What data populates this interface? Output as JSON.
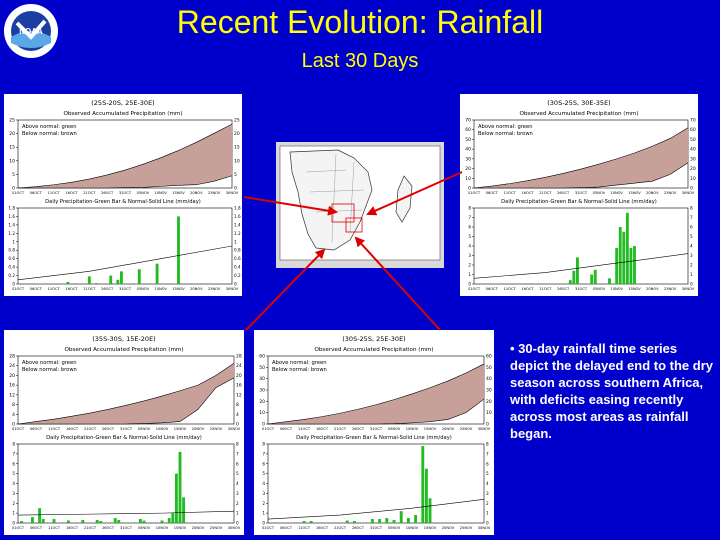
{
  "header": {
    "title": "Recent Evolution: Rainfall",
    "subtitle": "Last 30 Days",
    "logo_text": "NOAA"
  },
  "bullet": "• 30-day rainfall time series depict the delayed end to the dry season across southern Africa, with deficits easing recently across most areas as rainfall began.",
  "colors": {
    "background": "#0000cc",
    "title": "#ffff00",
    "bar": "#22bb22",
    "deficit": "#c8a09a",
    "arrow": "#dd0000"
  },
  "chart_data": [
    {
      "id": "top-left",
      "type": "area",
      "region": "(25S-20S, 25E-30E)",
      "top_title": "Observed Accumulated Precipitation (mm)",
      "legend_above": "Above normal: green",
      "legend_below": "Below normal: brown",
      "bottom_title": "Daily Precipitation-Green Bar & Normal-Solid Line (mm/day)",
      "x_ticks": [
        "01OCT",
        "06OCT",
        "11OCT",
        "16OCT",
        "21OCT",
        "26OCT",
        "31OCT",
        "05NOV",
        "10NOV",
        "15NOV",
        "20NOV",
        "25NOV",
        "30NOV"
      ],
      "top_yticks": [
        0,
        5,
        10,
        15,
        20,
        25
      ],
      "top_ylim": [
        0,
        25
      ],
      "accum_normal": [
        0,
        0.5,
        1.2,
        2.1,
        3.3,
        4.8,
        6.6,
        8.7,
        11.1,
        13.8,
        16.8,
        20.1,
        23.5
      ],
      "accum_observed": [
        0,
        0,
        0,
        0,
        0,
        0,
        0.1,
        0.2,
        0.6,
        1,
        1.2,
        2.5,
        4.5
      ],
      "bottom_yticks": [
        0,
        0.2,
        0.4,
        0.6,
        0.8,
        1,
        1.2,
        1.4,
        1.6,
        1.8
      ],
      "bottom_ylim": [
        0,
        1.8
      ],
      "daily_bars": [
        [
          0,
          0
        ],
        [
          14,
          0.05
        ],
        [
          20,
          0.18
        ],
        [
          22,
          0.02
        ],
        [
          26,
          0.2
        ],
        [
          28,
          0.1
        ],
        [
          29,
          0.3
        ],
        [
          34,
          0.35
        ],
        [
          39,
          0.48
        ],
        [
          45,
          1.6
        ]
      ],
      "daily_normal": [
        0.1,
        0.3,
        0.6,
        0.9
      ]
    },
    {
      "id": "top-right",
      "type": "area",
      "region": "(30S-25S, 30E-35E)",
      "top_title": "Observed Accumulated Precipitation (mm)",
      "legend_above": "Above normal: green",
      "legend_below": "Below normal: brown",
      "bottom_title": "Daily Precipitation-Green Bar & Normal-Solid Line (mm/day)",
      "x_ticks": [
        "01OCT",
        "06OCT",
        "11OCT",
        "16OCT",
        "21OCT",
        "26OCT",
        "31OCT",
        "05NOV",
        "10NOV",
        "15NOV",
        "20NOV",
        "25NOV",
        "30NOV"
      ],
      "top_yticks": [
        0,
        10,
        20,
        30,
        40,
        50,
        60,
        70
      ],
      "top_ylim": [
        0,
        70
      ],
      "accum_normal": [
        0,
        2,
        4.5,
        7.5,
        11,
        15,
        19.5,
        24.5,
        30,
        36,
        43,
        51,
        62
      ],
      "accum_observed": [
        0,
        0,
        0,
        0,
        0,
        0,
        0.3,
        1,
        3,
        5,
        7,
        14,
        26
      ],
      "bottom_yticks": [
        0,
        1,
        2,
        3,
        4,
        5,
        6,
        7,
        8
      ],
      "bottom_ylim": [
        0,
        8
      ],
      "daily_bars": [
        [
          27,
          0.4
        ],
        [
          28,
          1.4
        ],
        [
          29,
          2.8
        ],
        [
          33,
          1
        ],
        [
          34,
          1.5
        ],
        [
          38,
          0.6
        ],
        [
          40,
          3.8
        ],
        [
          41,
          6
        ],
        [
          42,
          5.5
        ],
        [
          43,
          7.5
        ],
        [
          44,
          3.8
        ],
        [
          45,
          4
        ]
      ],
      "daily_normal": [
        0.6,
        1.2,
        2.2,
        3.2
      ]
    },
    {
      "id": "bottom-left",
      "type": "area",
      "region": "(35S-30S, 15E-20E)",
      "top_title": "Observed Accumulated Precipitation (mm)",
      "legend_above": "Above normal: green",
      "legend_below": "Below normal: brown",
      "bottom_title": "Daily Precipitation-Green Bar & Normal-Solid Line (mm/day)",
      "x_ticks": [
        "01OCT",
        "06OCT",
        "11OCT",
        "16OCT",
        "21OCT",
        "26OCT",
        "31OCT",
        "05NOV",
        "10NOV",
        "15NOV",
        "20NOV",
        "25NOV",
        "30NOV"
      ],
      "top_yticks": [
        0,
        4,
        8,
        12,
        16,
        20,
        24,
        28
      ],
      "top_ylim": [
        0,
        28
      ],
      "accum_normal": [
        0,
        1,
        2,
        3.2,
        4.5,
        6,
        7.7,
        9.5,
        11.5,
        13.7,
        16,
        20,
        25
      ],
      "accum_observed": [
        0,
        0,
        0,
        0,
        0,
        0,
        0,
        0.2,
        0.5,
        1,
        6,
        15,
        19
      ],
      "bottom_yticks": [
        0,
        1,
        2,
        3,
        4,
        5,
        6,
        7,
        8
      ],
      "bottom_ylim": [
        0,
        8
      ],
      "daily_bars": [
        [
          1,
          0.2
        ],
        [
          4,
          0.6
        ],
        [
          6,
          1.5
        ],
        [
          7,
          0.4
        ],
        [
          10,
          0.4
        ],
        [
          14,
          0.25
        ],
        [
          18,
          0.3
        ],
        [
          22,
          0.3
        ],
        [
          23,
          0.2
        ],
        [
          27,
          0.5
        ],
        [
          28,
          0.3
        ],
        [
          34,
          0.4
        ],
        [
          35,
          0.25
        ],
        [
          40,
          0.25
        ],
        [
          42,
          0.5
        ],
        [
          43,
          1
        ],
        [
          44,
          5
        ],
        [
          45,
          7.2
        ],
        [
          46,
          2.6
        ]
      ],
      "daily_normal": [
        0.8,
        0.9,
        1,
        1.2
      ]
    },
    {
      "id": "bottom-middle",
      "type": "area",
      "region": "(30S-25S, 25E-30E)",
      "top_title": "Observed Accumulated Precipitation (mm)",
      "legend_above": "Above normal: green",
      "legend_below": "Below normal: brown",
      "bottom_title": "Daily Precipitation-Green Bar & Normal-Solid Line (mm/day)",
      "x_ticks": [
        "01OCT",
        "06OCT",
        "11OCT",
        "16OCT",
        "21OCT",
        "26OCT",
        "31OCT",
        "05NOV",
        "10NOV",
        "15NOV",
        "20NOV",
        "25NOV",
        "30NOV"
      ],
      "top_yticks": [
        0,
        10,
        20,
        30,
        40,
        50,
        60
      ],
      "top_ylim": [
        0,
        60
      ],
      "accum_normal": [
        0,
        2,
        4,
        6.5,
        9.5,
        13,
        17,
        21.5,
        26.5,
        32,
        38,
        45,
        53
      ],
      "accum_observed": [
        0,
        0,
        0,
        0,
        0,
        0,
        0,
        0.3,
        1,
        2,
        4,
        10,
        22
      ],
      "bottom_yticks": [
        0,
        1,
        2,
        3,
        4,
        5,
        6,
        7,
        8
      ],
      "bottom_ylim": [
        0,
        8
      ],
      "daily_bars": [
        [
          10,
          0.2
        ],
        [
          12,
          0.2
        ],
        [
          22,
          0.25
        ],
        [
          24,
          0.2
        ],
        [
          29,
          0.4
        ],
        [
          31,
          0.4
        ],
        [
          33,
          0.5
        ],
        [
          35,
          0.3
        ],
        [
          37,
          1.2
        ],
        [
          39,
          0.5
        ],
        [
          41,
          0.8
        ],
        [
          43,
          7.8
        ],
        [
          44,
          5.5
        ],
        [
          45,
          2.5
        ]
      ],
      "daily_normal": [
        0.4,
        0.8,
        1.5,
        2.4
      ]
    }
  ]
}
